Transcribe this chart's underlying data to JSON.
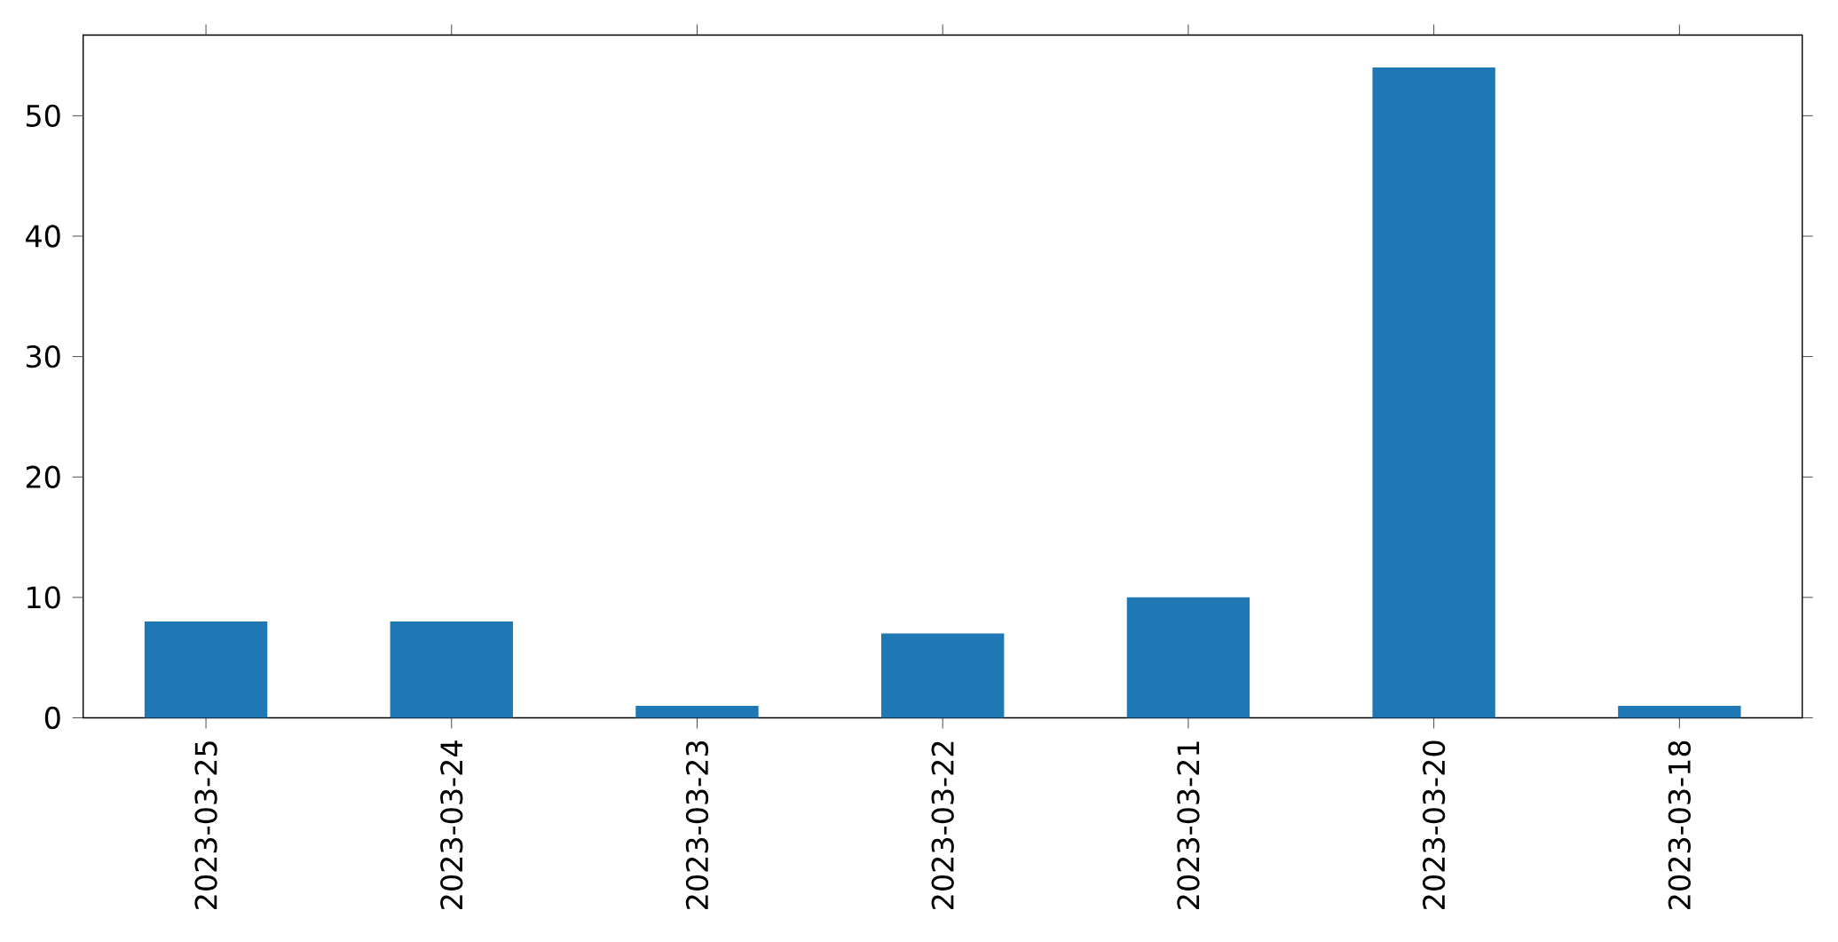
{
  "chart_data": {
    "type": "bar",
    "categories": [
      "2023-03-25",
      "2023-03-24",
      "2023-03-23",
      "2023-03-22",
      "2023-03-21",
      "2023-03-20",
      "2023-03-18"
    ],
    "values": [
      8,
      8,
      1,
      7,
      10,
      54,
      1
    ],
    "color": "#1f77b4",
    "ylim": [
      0,
      56.7
    ],
    "yticks": [
      0,
      10,
      20,
      30,
      40,
      50
    ],
    "grid": false
  }
}
